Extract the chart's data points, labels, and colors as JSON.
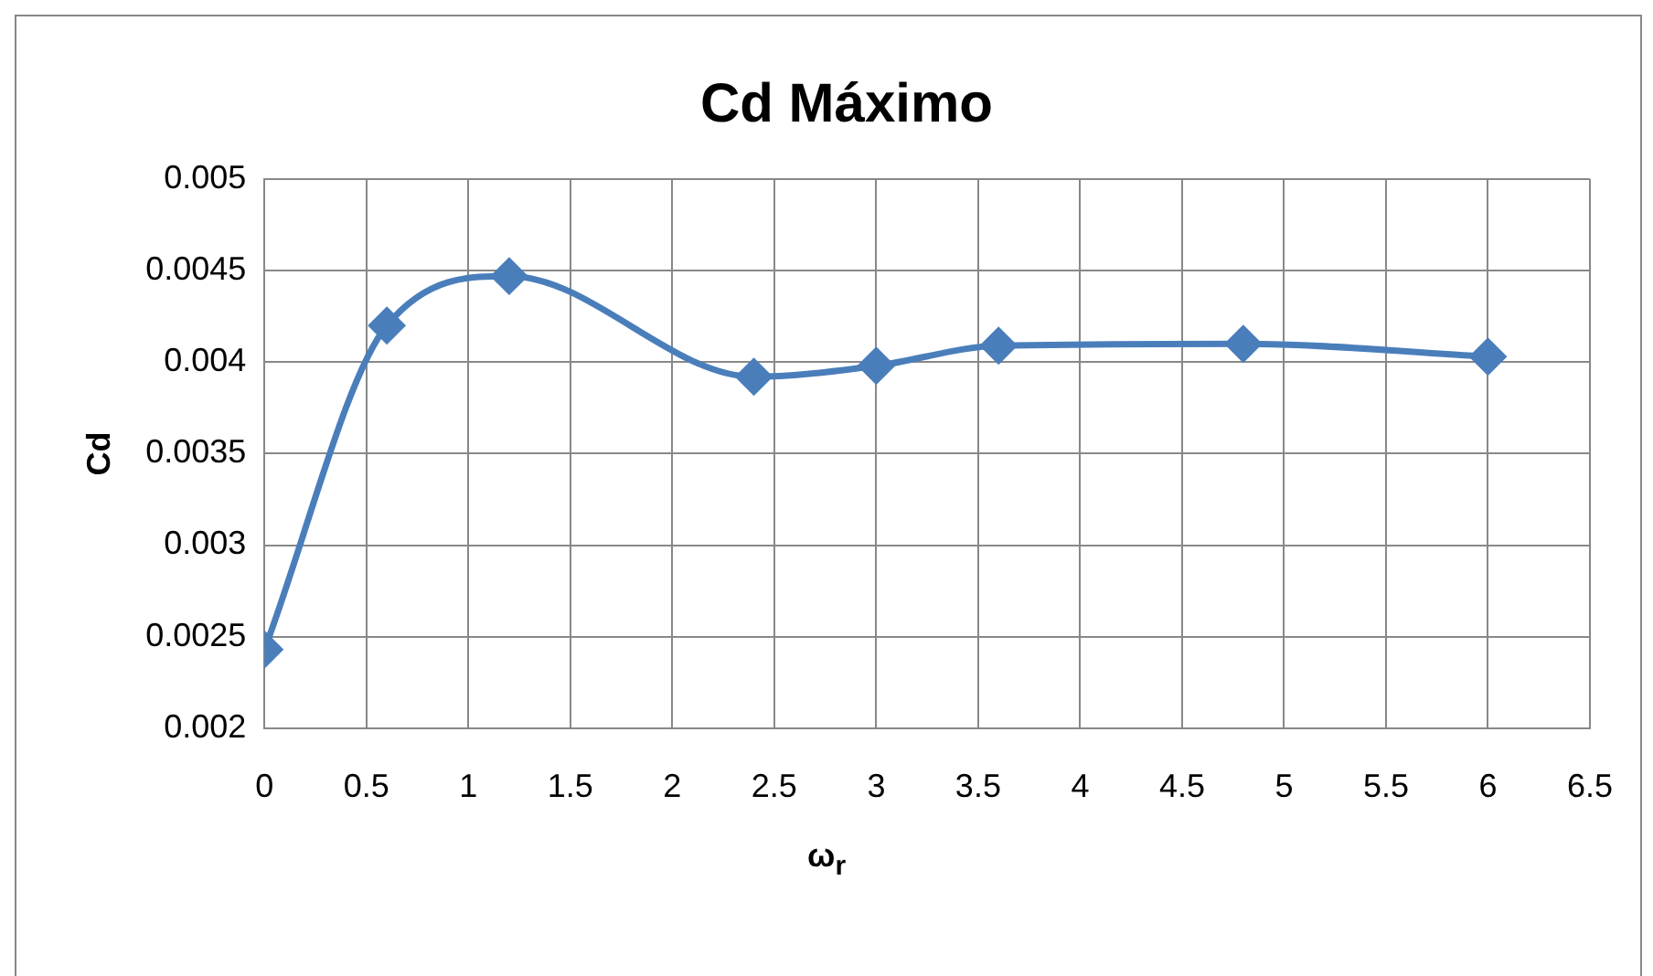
{
  "chart_data": {
    "type": "line",
    "title": "Cd Máximo",
    "xlabel": "ω$_{r}$",
    "ylabel": "Cd",
    "x": [
      0,
      0.6,
      1.2,
      2.4,
      3.0,
      3.6,
      4.8,
      6.0
    ],
    "series": [
      {
        "color": "#4a7ebb",
        "values": [
          0.00243,
          0.0042,
          0.00447,
          0.00392,
          0.00398,
          0.00409,
          0.0041,
          0.00403
        ]
      }
    ],
    "xlim": [
      0,
      6.5
    ],
    "xticks": [
      0,
      0.5,
      1,
      1.5,
      2,
      2.5,
      3,
      3.5,
      4,
      4.5,
      5,
      5.5,
      6,
      6.5
    ],
    "ylim": [
      0.002,
      0.005
    ],
    "yticks": [
      0.002,
      0.0025,
      0.003,
      0.0035,
      0.004,
      0.0045,
      0.005
    ],
    "grid": true,
    "legend": false,
    "marker": "diamond",
    "line_style": "solid"
  }
}
